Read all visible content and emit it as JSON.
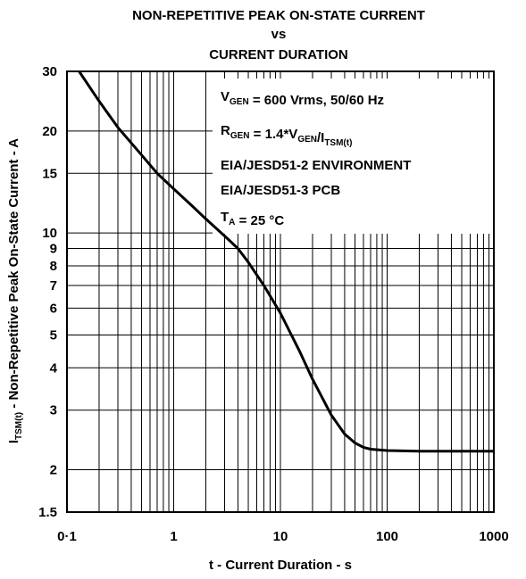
{
  "chart_data": {
    "type": "line",
    "title_lines": [
      "NON-REPETITIVE PEAK ON-STATE CURRENT",
      "vs",
      "CURRENT DURATION"
    ],
    "xlabel": "t - Current Duration - s",
    "ylabel": {
      "prefix": "I",
      "subscript": "TSM(t)",
      "rest": " - Non-Repetitive Peak On-State Current - A"
    },
    "x_scale": "log",
    "y_scale": "log",
    "xlim": [
      0.1,
      1000
    ],
    "ylim": [
      1.5,
      30
    ],
    "x_ticks": [
      {
        "value": 0.1,
        "label": "0·1"
      },
      {
        "value": 1,
        "label": "1"
      },
      {
        "value": 10,
        "label": "10"
      },
      {
        "value": 100,
        "label": "100"
      },
      {
        "value": 1000,
        "label": "1000"
      }
    ],
    "y_ticks": [
      {
        "value": 1.5,
        "label": "1.5"
      },
      {
        "value": 2,
        "label": "2"
      },
      {
        "value": 3,
        "label": "3"
      },
      {
        "value": 4,
        "label": "4"
      },
      {
        "value": 5,
        "label": "5"
      },
      {
        "value": 6,
        "label": "6"
      },
      {
        "value": 7,
        "label": "7"
      },
      {
        "value": 8,
        "label": "8"
      },
      {
        "value": 9,
        "label": "9"
      },
      {
        "value": 10,
        "label": "10"
      },
      {
        "value": 15,
        "label": "15"
      },
      {
        "value": 20,
        "label": "20"
      },
      {
        "value": 30,
        "label": "30"
      }
    ],
    "grid": true,
    "annotations": [
      {
        "main": "V",
        "sub": "GEN",
        "rest": " = 600 Vrms, 50/60 Hz"
      },
      {
        "main": "R",
        "sub": "GEN",
        "rest": " = 1.4*V",
        "sub2": "GEN",
        "rest2": "/I",
        "sub3": "TSM(t)"
      },
      {
        "main": "EIA/JESD51-2 ENVIRONMENT"
      },
      {
        "main": "EIA/JESD51-3 PCB"
      },
      {
        "main": "T",
        "sub": "A",
        "rest": " = 25 °C"
      }
    ],
    "series": [
      {
        "color": "#000000",
        "x": [
          0.13,
          0.2,
          0.3,
          0.5,
          0.7,
          1,
          1.5,
          2,
          3,
          4,
          5,
          7,
          10,
          15,
          20,
          30,
          40,
          50,
          60,
          70,
          100,
          200,
          500,
          1000
        ],
        "y": [
          30,
          24.5,
          20.5,
          17,
          15,
          13.5,
          12,
          11,
          9.8,
          9.0,
          8.2,
          7.0,
          5.8,
          4.5,
          3.7,
          2.9,
          2.55,
          2.4,
          2.33,
          2.3,
          2.28,
          2.27,
          2.27,
          2.27
        ]
      }
    ]
  }
}
